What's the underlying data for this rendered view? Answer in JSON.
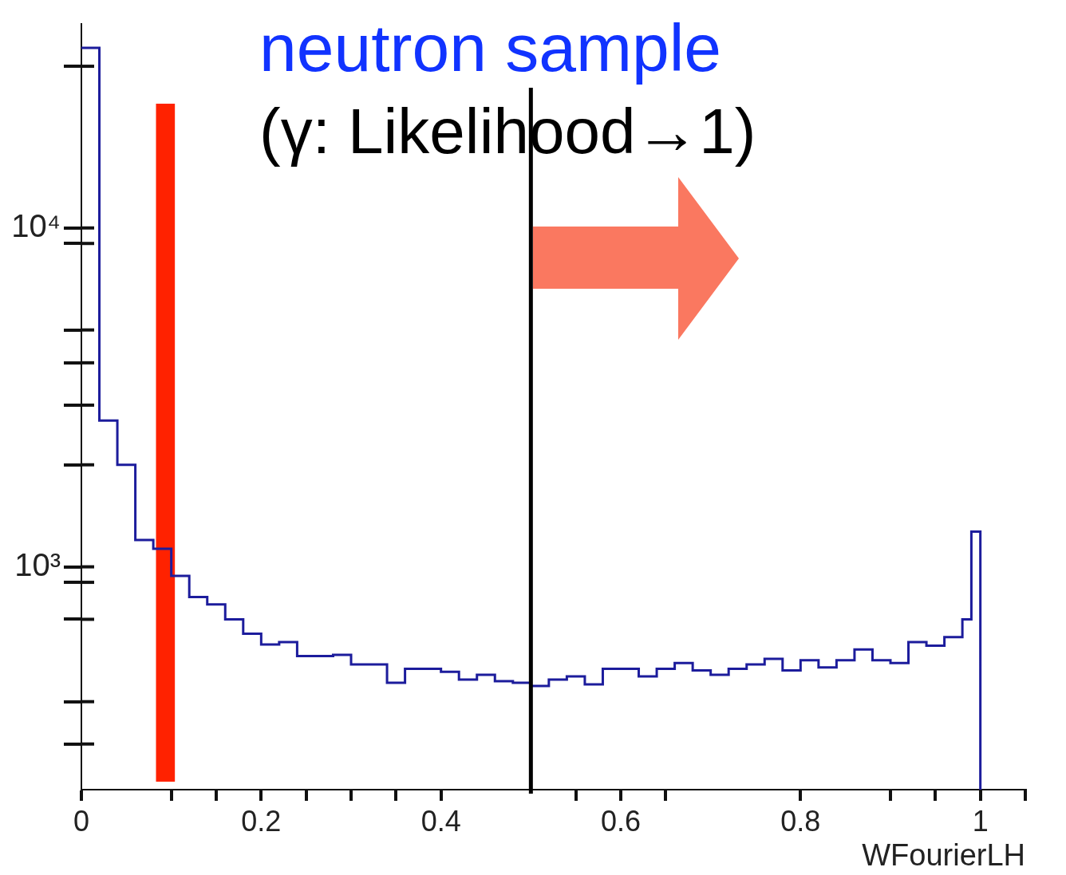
{
  "chart_data": {
    "type": "histogram",
    "title": "neutron sample",
    "subtitle": "(γ: Likelihood→1)",
    "xlabel": "WFourierLH",
    "color": "#1c1c9c",
    "bins": [
      0,
      0.02,
      0.04,
      0.06,
      0.08,
      0.1,
      0.12,
      0.14,
      0.16,
      0.18,
      0.2,
      0.22,
      0.24,
      0.26,
      0.28,
      0.3,
      0.32,
      0.34,
      0.36,
      0.38,
      0.4,
      0.42,
      0.44,
      0.46,
      0.48,
      0.5,
      0.52,
      0.54,
      0.56,
      0.58,
      0.6,
      0.62,
      0.64,
      0.66,
      0.68,
      0.7,
      0.72,
      0.74,
      0.76,
      0.78,
      0.8,
      0.82,
      0.84,
      0.86,
      0.88,
      0.9,
      0.92,
      0.94,
      0.96,
      0.98,
      0.99,
      1.0
    ],
    "values": [
      34000,
      2700,
      2000,
      1200,
      1130,
      940,
      815,
      775,
      700,
      635,
      590,
      600,
      545,
      545,
      550,
      515,
      515,
      455,
      500,
      500,
      490,
      465,
      480,
      460,
      455,
      445,
      465,
      475,
      450,
      500,
      500,
      475,
      500,
      520,
      495,
      480,
      500,
      515,
      535,
      495,
      530,
      505,
      530,
      570,
      530,
      520,
      600,
      585,
      620,
      700,
      1270
    ],
    "xlim": [
      0,
      1.05
    ],
    "xticks": [
      0,
      {
        "value": 0.1,
        "label": null
      },
      {
        "value": 0.15,
        "label": null
      },
      0.2,
      {
        "value": 0.25,
        "label": null
      },
      {
        "value": 0.3,
        "label": null
      },
      {
        "value": 0.35,
        "label": null
      },
      0.4,
      {
        "value": 0.55,
        "label": null
      },
      0.6,
      {
        "value": 0.65,
        "label": null
      },
      0.8,
      {
        "value": 0.9,
        "label": null
      },
      {
        "value": 0.95,
        "label": null
      },
      1,
      {
        "value": 1.05,
        "label": null
      }
    ],
    "ylim": [
      220,
      40000
    ],
    "yticks": [
      {
        "value": 300,
        "label": null
      },
      {
        "value": 400,
        "label": null
      },
      {
        "value": 700,
        "label": null
      },
      {
        "value": 900,
        "label": null
      },
      {
        "value": 1000,
        "label": "10³"
      },
      {
        "value": 2000,
        "label": null
      },
      {
        "value": 3000,
        "label": null
      },
      {
        "value": 4000,
        "label": null
      },
      {
        "value": 5000,
        "label": null
      },
      {
        "value": 9000,
        "label": null
      },
      {
        "value": 10000,
        "label": "10⁴"
      },
      {
        "value": 30000,
        "label": null
      }
    ],
    "log": "y",
    "grid": false,
    "ref_lines": [
      {
        "axis": "x",
        "value": 0.5,
        "color": "#000000"
      }
    ],
    "bands": [
      {
        "axis": "x",
        "from": 0.083,
        "to": 0.104,
        "color": "#ff2200"
      }
    ]
  }
}
